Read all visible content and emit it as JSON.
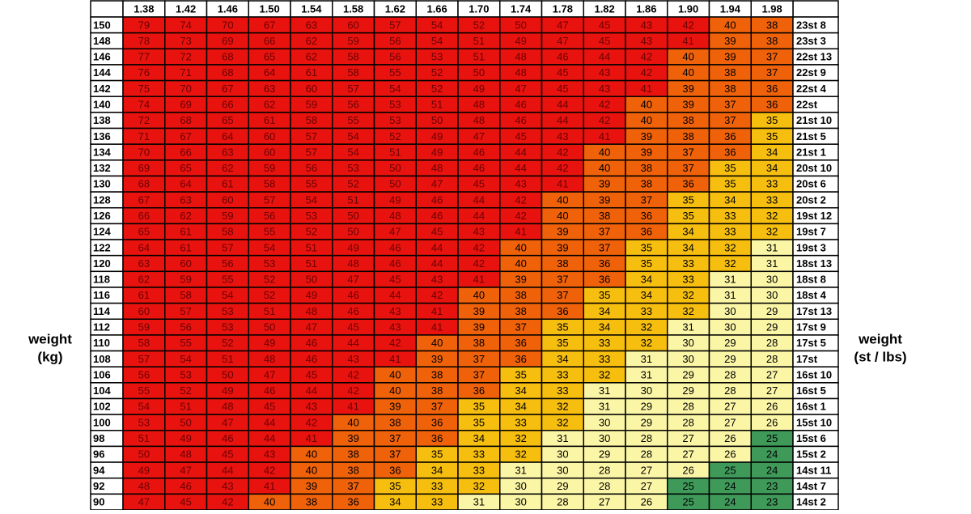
{
  "left_label": [
    "weight",
    "(kg)"
  ],
  "right_label": [
    "weight",
    "(st / lbs)"
  ],
  "table": {
    "header": [
      "1.38",
      "1.42",
      "1.46",
      "1.50",
      "1.54",
      "1.58",
      "1.62",
      "1.66",
      "1.70",
      "1.74",
      "1.78",
      "1.82",
      "1.86",
      "1.90",
      "1.94",
      "1.98"
    ],
    "rows": [
      {
        "kg": 150,
        "bmi": [
          79,
          74,
          70,
          67,
          63,
          60,
          57,
          54,
          52,
          50,
          47,
          45,
          43,
          42,
          40,
          38
        ],
        "st": "23st 8"
      },
      {
        "kg": 148,
        "bmi": [
          78,
          73,
          69,
          66,
          62,
          59,
          56,
          54,
          51,
          49,
          47,
          45,
          43,
          41,
          39,
          38
        ],
        "st": "23st 3"
      },
      {
        "kg": 146,
        "bmi": [
          77,
          72,
          68,
          65,
          62,
          58,
          56,
          53,
          51,
          48,
          46,
          44,
          42,
          40,
          39,
          37
        ],
        "st": "22st 13"
      },
      {
        "kg": 144,
        "bmi": [
          76,
          71,
          68,
          64,
          61,
          58,
          55,
          52,
          50,
          48,
          45,
          43,
          42,
          40,
          38,
          37
        ],
        "st": "22st 9"
      },
      {
        "kg": 142,
        "bmi": [
          75,
          70,
          67,
          63,
          60,
          57,
          54,
          52,
          49,
          47,
          45,
          43,
          41,
          39,
          38,
          36
        ],
        "st": "22st 4"
      },
      {
        "kg": 140,
        "bmi": [
          74,
          69,
          66,
          62,
          59,
          56,
          53,
          51,
          48,
          46,
          44,
          42,
          40,
          39,
          37,
          36
        ],
        "st": "22st"
      },
      {
        "kg": 138,
        "bmi": [
          72,
          68,
          65,
          61,
          58,
          55,
          53,
          50,
          48,
          46,
          44,
          42,
          40,
          38,
          37,
          35
        ],
        "st": "21st 10"
      },
      {
        "kg": 136,
        "bmi": [
          71,
          67,
          64,
          60,
          57,
          54,
          52,
          49,
          47,
          45,
          43,
          41,
          39,
          38,
          36,
          35
        ],
        "st": "21st 5"
      },
      {
        "kg": 134,
        "bmi": [
          70,
          66,
          63,
          60,
          57,
          54,
          51,
          49,
          46,
          44,
          42,
          40,
          39,
          37,
          36,
          34
        ],
        "st": "21st 1"
      },
      {
        "kg": 132,
        "bmi": [
          69,
          65,
          62,
          59,
          56,
          53,
          50,
          48,
          46,
          44,
          42,
          40,
          38,
          37,
          35,
          34
        ],
        "st": "20st 10"
      },
      {
        "kg": 130,
        "bmi": [
          68,
          64,
          61,
          58,
          55,
          52,
          50,
          47,
          45,
          43,
          41,
          39,
          38,
          36,
          35,
          33
        ],
        "st": "20st 6"
      },
      {
        "kg": 128,
        "bmi": [
          67,
          63,
          60,
          57,
          54,
          51,
          49,
          46,
          44,
          42,
          40,
          39,
          37,
          35,
          34,
          33
        ],
        "st": "20st 2"
      },
      {
        "kg": 126,
        "bmi": [
          66,
          62,
          59,
          56,
          53,
          50,
          48,
          46,
          44,
          42,
          40,
          38,
          36,
          35,
          33,
          32
        ],
        "st": "19st 12"
      },
      {
        "kg": 124,
        "bmi": [
          65,
          61,
          58,
          55,
          52,
          50,
          47,
          45,
          43,
          41,
          39,
          37,
          36,
          34,
          33,
          32
        ],
        "st": "19st 7"
      },
      {
        "kg": 122,
        "bmi": [
          64,
          61,
          57,
          54,
          51,
          49,
          46,
          44,
          42,
          40,
          39,
          37,
          35,
          34,
          32,
          31
        ],
        "st": "19st 3"
      },
      {
        "kg": 120,
        "bmi": [
          63,
          60,
          56,
          53,
          51,
          48,
          46,
          44,
          42,
          40,
          38,
          36,
          35,
          33,
          32,
          31
        ],
        "st": "18st 13"
      },
      {
        "kg": 118,
        "bmi": [
          62,
          59,
          55,
          52,
          50,
          47,
          45,
          43,
          41,
          39,
          37,
          36,
          34,
          33,
          31,
          30
        ],
        "st": "18st 8"
      },
      {
        "kg": 116,
        "bmi": [
          61,
          58,
          54,
          52,
          49,
          46,
          44,
          42,
          40,
          38,
          37,
          35,
          34,
          32,
          31,
          30
        ],
        "st": "18st 4"
      },
      {
        "kg": 114,
        "bmi": [
          60,
          57,
          53,
          51,
          48,
          46,
          43,
          41,
          39,
          38,
          36,
          34,
          33,
          32,
          30,
          29
        ],
        "st": "17st 13"
      },
      {
        "kg": 112,
        "bmi": [
          59,
          56,
          53,
          50,
          47,
          45,
          43,
          41,
          39,
          37,
          35,
          34,
          32,
          31,
          30,
          29
        ],
        "st": "17st 9"
      },
      {
        "kg": 110,
        "bmi": [
          58,
          55,
          52,
          49,
          46,
          44,
          42,
          40,
          38,
          36,
          35,
          33,
          32,
          30,
          29,
          28
        ],
        "st": "17st 5"
      },
      {
        "kg": 108,
        "bmi": [
          57,
          54,
          51,
          48,
          46,
          43,
          41,
          39,
          37,
          36,
          34,
          33,
          31,
          30,
          29,
          28
        ],
        "st": "17st"
      },
      {
        "kg": 106,
        "bmi": [
          56,
          53,
          50,
          47,
          45,
          42,
          40,
          38,
          37,
          35,
          33,
          32,
          31,
          29,
          28,
          27
        ],
        "st": "16st 10"
      },
      {
        "kg": 104,
        "bmi": [
          55,
          52,
          49,
          46,
          44,
          42,
          40,
          38,
          36,
          34,
          33,
          31,
          30,
          29,
          28,
          27
        ],
        "st": "16st 5"
      },
      {
        "kg": 102,
        "bmi": [
          54,
          51,
          48,
          45,
          43,
          41,
          39,
          37,
          35,
          34,
          32,
          31,
          29,
          28,
          27,
          26
        ],
        "st": "16st 1"
      },
      {
        "kg": 100,
        "bmi": [
          53,
          50,
          47,
          44,
          42,
          40,
          38,
          36,
          35,
          33,
          32,
          30,
          29,
          28,
          27,
          26
        ],
        "st": "15st 10"
      },
      {
        "kg": 98,
        "bmi": [
          51,
          49,
          46,
          44,
          41,
          39,
          37,
          36,
          34,
          32,
          31,
          30,
          28,
          27,
          26,
          25
        ],
        "st": "15st 6"
      },
      {
        "kg": 96,
        "bmi": [
          50,
          48,
          45,
          43,
          40,
          38,
          37,
          35,
          33,
          32,
          30,
          29,
          28,
          27,
          26,
          24
        ],
        "st": "15st 2"
      },
      {
        "kg": 94,
        "bmi": [
          49,
          47,
          44,
          42,
          40,
          38,
          36,
          34,
          33,
          31,
          30,
          28,
          27,
          26,
          25,
          24
        ],
        "st": "14st 11"
      },
      {
        "kg": 92,
        "bmi": [
          48,
          46,
          43,
          41,
          39,
          37,
          35,
          33,
          32,
          30,
          29,
          28,
          27,
          25,
          24,
          23
        ],
        "st": "14st 7"
      },
      {
        "kg": 90,
        "bmi": [
          47,
          45,
          42,
          40,
          38,
          36,
          34,
          33,
          31,
          30,
          28,
          27,
          26,
          25,
          24,
          23
        ],
        "st": "14st 2"
      }
    ]
  }
}
